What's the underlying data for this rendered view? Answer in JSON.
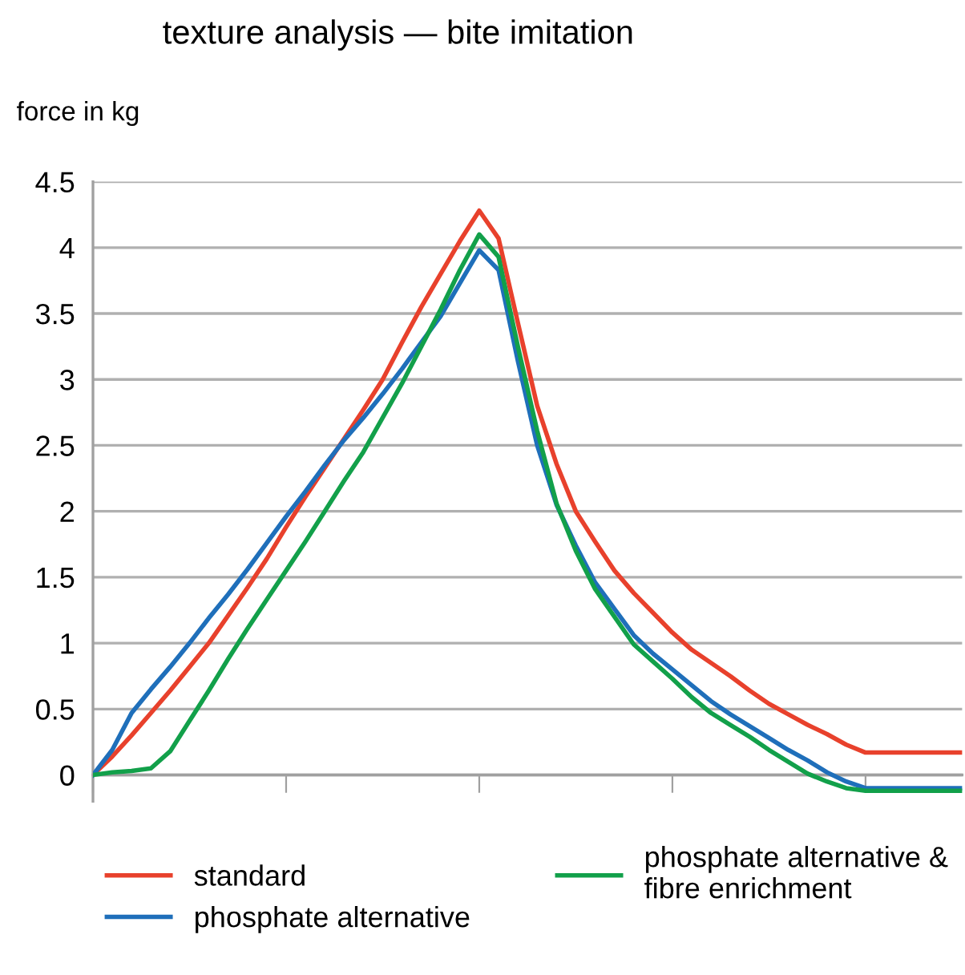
{
  "chart_data": {
    "type": "line",
    "title": "texture analysis — bite imitation",
    "ylabel": "force in kg",
    "categories": [
      null,
      null,
      null,
      null,
      null,
      null,
      null,
      null,
      null,
      null,
      null,
      null,
      null,
      null,
      null,
      null,
      null,
      null,
      null,
      null,
      null,
      null,
      null,
      null,
      null,
      null,
      null,
      null,
      null,
      null,
      null,
      null,
      null,
      null,
      null,
      null,
      null,
      null,
      null,
      null,
      null,
      null,
      null,
      null,
      null,
      null
    ],
    "ylim": [
      -0.2,
      4.5
    ],
    "yticks": [
      0,
      0.5,
      1,
      1.5,
      2,
      2.5,
      3,
      3.5,
      4,
      4.5
    ],
    "tick_labels": "y",
    "grid": "y",
    "legend": "bottom",
    "marker": "none",
    "line_style": "solid",
    "series": [
      {
        "name": "standard",
        "color": "#e8412c",
        "values": [
          0,
          0.14,
          0.3,
          0.47,
          0.64,
          0.82,
          1.0,
          1.21,
          1.42,
          1.64,
          1.88,
          2.11,
          2.33,
          2.55,
          2.77,
          3.0,
          3.28,
          3.55,
          3.8,
          4.05,
          4.28,
          4.07,
          3.43,
          2.8,
          2.36,
          2.0,
          1.77,
          1.55,
          1.38,
          1.23,
          1.08,
          0.95,
          0.85,
          0.75,
          0.64,
          0.54,
          0.46,
          0.38,
          0.31,
          0.23,
          0.17,
          0.17,
          0.17,
          0.17,
          0.17,
          0.17
        ]
      },
      {
        "name": "phosphate alternative",
        "color": "#1f6fba",
        "values": [
          0,
          0.19,
          0.47,
          0.65,
          0.82,
          1.0,
          1.19,
          1.37,
          1.56,
          1.76,
          1.96,
          2.15,
          2.35,
          2.54,
          2.71,
          2.89,
          3.08,
          3.28,
          3.48,
          3.73,
          3.98,
          3.83,
          3.14,
          2.5,
          2.05,
          1.74,
          1.46,
          1.26,
          1.06,
          0.92,
          0.8,
          0.68,
          0.56,
          0.46,
          0.37,
          0.28,
          0.19,
          0.11,
          0.02,
          -0.05,
          -0.1,
          -0.1,
          -0.1,
          -0.1,
          -0.1,
          -0.1
        ]
      },
      {
        "name": "phosphate alternative &\nfibre enrichment",
        "color": "#12a04a",
        "values": [
          0,
          0.02,
          0.03,
          0.05,
          0.18,
          0.41,
          0.64,
          0.88,
          1.11,
          1.33,
          1.55,
          1.77,
          2.0,
          2.23,
          2.45,
          2.71,
          2.97,
          3.25,
          3.53,
          3.83,
          4.1,
          3.93,
          3.25,
          2.61,
          2.06,
          1.7,
          1.41,
          1.2,
          0.99,
          0.86,
          0.73,
          0.59,
          0.47,
          0.38,
          0.29,
          0.19,
          0.1,
          0.01,
          -0.05,
          -0.1,
          -0.12,
          -0.12,
          -0.12,
          -0.12,
          -0.12,
          -0.12
        ]
      }
    ]
  }
}
